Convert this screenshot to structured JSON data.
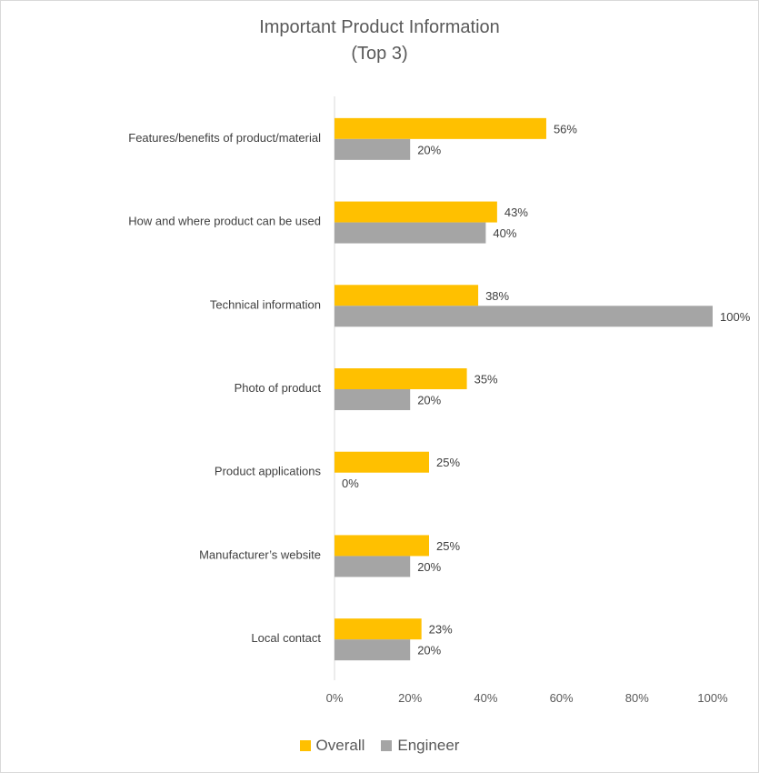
{
  "chart_data": {
    "type": "bar",
    "orientation": "horizontal",
    "title": "Important Product Information",
    "subtitle": "(Top 3)",
    "categories": [
      "Features/benefits of product/material",
      "How and where product can be used",
      "Technical information",
      "Photo of product",
      "Product applications",
      "Manufacturer’s website",
      "Local contact"
    ],
    "series": [
      {
        "name": "Overall",
        "color": "#ffc000",
        "values": [
          56,
          43,
          38,
          35,
          25,
          25,
          23
        ],
        "labels": [
          "56%",
          "43%",
          "38%",
          "35%",
          "25%",
          "25%",
          "23%"
        ]
      },
      {
        "name": "Engineer",
        "color": "#a5a5a5",
        "values": [
          20,
          40,
          100,
          20,
          0,
          20,
          20
        ],
        "labels": [
          "20%",
          "40%",
          "100%",
          "20%",
          "0%",
          "20%",
          "20%"
        ]
      }
    ],
    "xlim": [
      0,
      100
    ],
    "xticks": [
      "0%",
      "20%",
      "40%",
      "60%",
      "80%",
      "100%"
    ],
    "grid": false,
    "legend_position": "bottom"
  }
}
